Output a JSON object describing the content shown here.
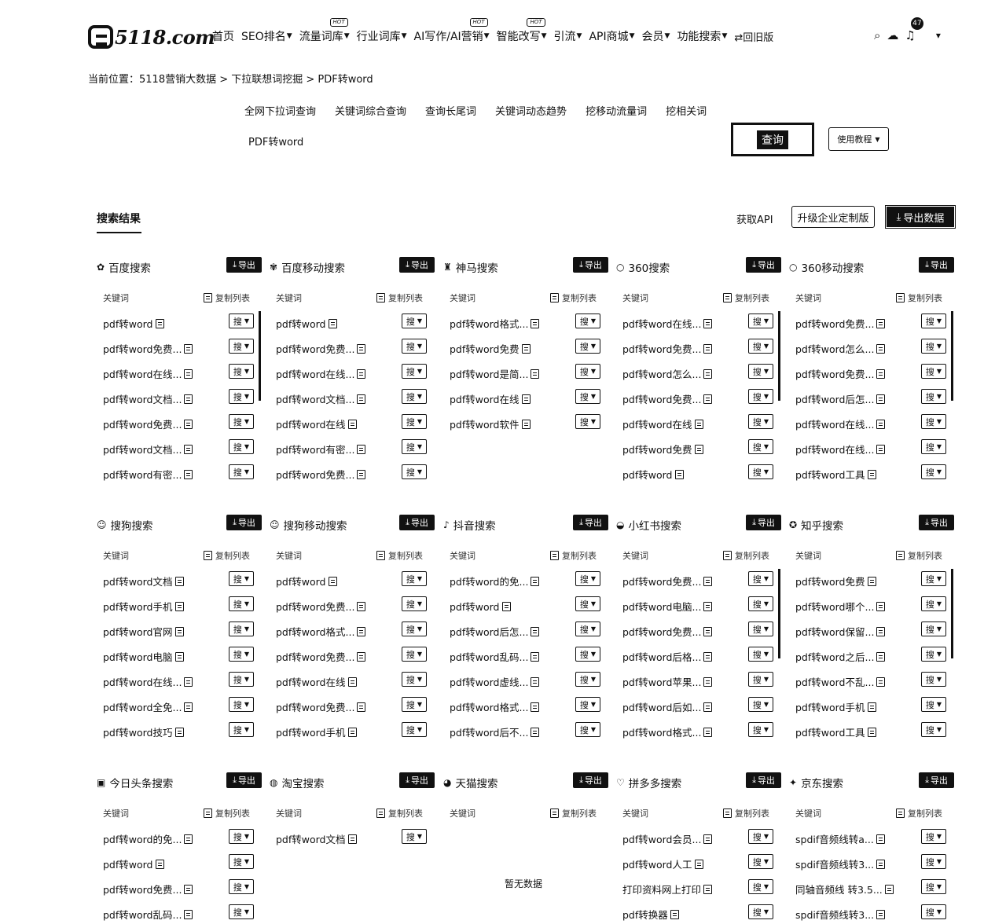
{
  "header": {
    "logo": "5118.com",
    "nav": [
      {
        "label": "首页",
        "caret": false,
        "hot": false
      },
      {
        "label": "SEO排名",
        "caret": true,
        "hot": false
      },
      {
        "label": "流量词库",
        "caret": true,
        "hot": true
      },
      {
        "label": "行业词库",
        "caret": true,
        "hot": false
      },
      {
        "label": "AI写作/AI营销",
        "caret": true,
        "hot": true
      },
      {
        "label": "智能改写",
        "caret": true,
        "hot": true
      },
      {
        "label": "引流",
        "caret": true,
        "hot": false
      },
      {
        "label": "API商城",
        "caret": true,
        "hot": false
      },
      {
        "label": "会员",
        "caret": true,
        "hot": false
      },
      {
        "label": "功能搜索",
        "caret": true,
        "hot": false
      }
    ],
    "old_version": "⇄回旧版",
    "hot_label": "HOT",
    "notification_count": "47"
  },
  "breadcrumb": "当前位置：5118营销大数据 > 下拉联想词挖掘 > PDF转word",
  "search": {
    "tabs": [
      "全网下拉词查询",
      "关键词综合查询",
      "查询长尾词",
      "关键词动态趋势",
      "挖移动流量词",
      "挖相关词"
    ],
    "query": "PDF转word",
    "button": "查询",
    "tutorial": "使用教程"
  },
  "results": {
    "title": "搜索结果",
    "get_api": "获取API",
    "upgrade": "升级企业定制版",
    "export_all": "导出数据",
    "export_label": "导出",
    "col_keyword": "关键词",
    "col_copy": "复制列表",
    "sou_label": "搜",
    "empty_label": "暂无数据"
  },
  "panels": [
    {
      "title": "百度搜索",
      "icon": "paw-icon",
      "scroll": true,
      "items": [
        "pdf转word",
        "pdf转word免费...",
        "pdf转word在线...",
        "pdf转word文档...",
        "pdf转word免费...",
        "pdf转word文档...",
        "pdf转word有密..."
      ]
    },
    {
      "title": "百度移动搜索",
      "icon": "mobile-paw-icon",
      "scroll": false,
      "items": [
        "pdf转word",
        "pdf转word免费...",
        "pdf转word在线...",
        "pdf转word文档...",
        "pdf转word在线",
        "pdf转word有密...",
        "pdf转word免费..."
      ]
    },
    {
      "title": "神马搜索",
      "icon": "shenma-icon",
      "scroll": false,
      "items": [
        "pdf转word格式...",
        "pdf转word免费",
        "pdf转word是简...",
        "pdf转word在线",
        "pdf转word软件"
      ]
    },
    {
      "title": "360搜索",
      "icon": "360-icon",
      "scroll": true,
      "items": [
        "pdf转word在线...",
        "pdf转word免费...",
        "pdf转word怎么...",
        "pdf转word免费...",
        "pdf转word在线",
        "pdf转word免费",
        "pdf转word"
      ]
    },
    {
      "title": "360移动搜索",
      "icon": "360-icon",
      "scroll": true,
      "items": [
        "pdf转word免费...",
        "pdf转word怎么...",
        "pdf转word免费...",
        "pdf转word后怎...",
        "pdf转word在线...",
        "pdf转word在线...",
        "pdf转word工具"
      ]
    },
    {
      "title": "搜狗搜索",
      "icon": "sogou-icon",
      "scroll": false,
      "items": [
        "pdf转word文档",
        "pdf转word手机",
        "pdf转word官网",
        "pdf转word电脑",
        "pdf转word在线...",
        "pdf转word全免...",
        "pdf转word技巧"
      ]
    },
    {
      "title": "搜狗移动搜索",
      "icon": "sogou-icon",
      "scroll": false,
      "items": [
        "pdf转word",
        "pdf转word免费...",
        "pdf转word格式...",
        "pdf转word免费...",
        "pdf转word在线",
        "pdf转word免费...",
        "pdf转word手机"
      ]
    },
    {
      "title": "抖音搜索",
      "icon": "douyin-icon",
      "scroll": false,
      "items": [
        "pdf转word的免...",
        "pdf转word",
        "pdf转word后怎...",
        "pdf转word乱码...",
        "pdf转word虚线...",
        "pdf转word格式...",
        "pdf转word后不..."
      ]
    },
    {
      "title": "小红书搜索",
      "icon": "xiaohongshu-icon",
      "scroll": true,
      "items": [
        "pdf转word免费...",
        "pdf转word电脑...",
        "pdf转word免费...",
        "pdf转word后格...",
        "pdf转word苹果...",
        "pdf转word后如...",
        "pdf转word格式..."
      ]
    },
    {
      "title": "知乎搜索",
      "icon": "zhihu-icon",
      "scroll": true,
      "items": [
        "pdf转word免费",
        "pdf转word哪个...",
        "pdf转word保留...",
        "pdf转word之后...",
        "pdf转word不乱...",
        "pdf转word手机",
        "pdf转word工具"
      ]
    },
    {
      "title": "今日头条搜索",
      "icon": "toutiao-icon",
      "scroll": false,
      "items": [
        "pdf转word的免...",
        "pdf转word",
        "pdf转word免费...",
        "pdf转word乱码..."
      ]
    },
    {
      "title": "淘宝搜索",
      "icon": "taobao-icon",
      "scroll": false,
      "items": [
        "pdf转word文档"
      ]
    },
    {
      "title": "天猫搜索",
      "icon": "tmall-icon",
      "scroll": false,
      "empty": true,
      "items": []
    },
    {
      "title": "拼多多搜索",
      "icon": "pinduoduo-icon",
      "scroll": true,
      "items": [
        "pdf转word会员...",
        "pdf转word人工",
        "打印资料网上打印",
        "pdf转换器"
      ]
    },
    {
      "title": "京东搜索",
      "icon": "jd-icon",
      "scroll": true,
      "items": [
        "spdif音频线转a...",
        "spdif音频线转3...",
        "同轴音频线 转3.5...",
        "spdif音频线转3..."
      ]
    }
  ]
}
